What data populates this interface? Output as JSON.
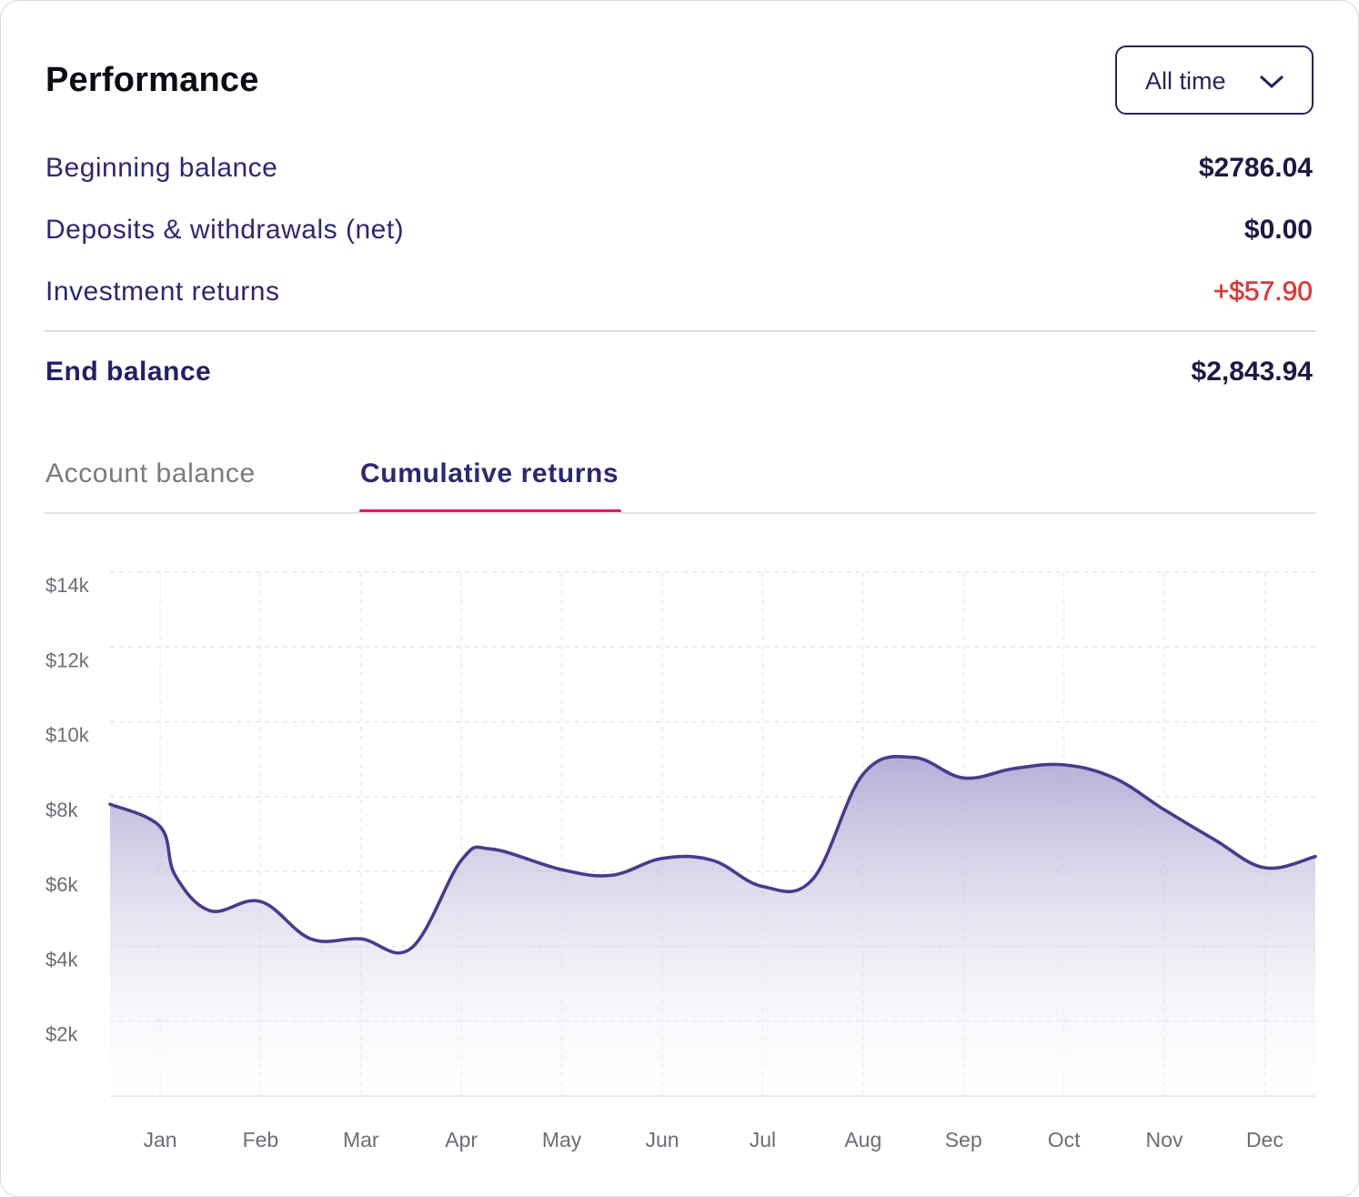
{
  "header": {
    "title": "Performance",
    "period_dropdown": {
      "selected": "All time"
    }
  },
  "summary": {
    "beginning_balance": {
      "label": "Beginning balance",
      "value": "$2786.04"
    },
    "deposits_withdrawals": {
      "label": "Deposits & withdrawals (net)",
      "value": "$0.00"
    },
    "investment_returns": {
      "label": "Investment returns",
      "value": "+$57.90"
    },
    "end_balance": {
      "label": "End balance",
      "value": "$2,843.94"
    }
  },
  "tabs": [
    {
      "label": "Account balance",
      "active": false
    },
    {
      "label": "Cumulative returns",
      "active": true
    }
  ],
  "colors": {
    "line": "#463c8c",
    "accent_underline": "#e01a6d",
    "positive_value": "#d93b3b",
    "text_primary": "#2d2870"
  },
  "chart_data": {
    "type": "area",
    "title": "",
    "xlabel": "",
    "ylabel": "",
    "ylim": [
      0,
      14000
    ],
    "yticks": [
      2000,
      4000,
      6000,
      8000,
      10000,
      12000,
      14000
    ],
    "ytick_labels": [
      "$2k",
      "$4k",
      "$6k",
      "$8k",
      "$10k",
      "$12k",
      "$14k"
    ],
    "categories": [
      "Jan",
      "Feb",
      "Mar",
      "Apr",
      "May",
      "Jun",
      "Jul",
      "Aug",
      "Sep",
      "Oct",
      "Nov",
      "Dec"
    ],
    "x": [
      -0.5,
      0,
      0.15,
      0.5,
      1,
      1.5,
      2,
      2.5,
      3,
      3.3,
      4,
      4.5,
      5,
      5.5,
      6,
      6.5,
      7,
      7.5,
      8,
      8.5,
      9,
      9.5,
      10,
      10.5,
      11,
      11.6
    ],
    "values": [
      7800,
      7200,
      5900,
      4950,
      5200,
      4200,
      4200,
      3950,
      6300,
      6600,
      6050,
      5900,
      6350,
      6300,
      5600,
      5800,
      8600,
      9050,
      8500,
      8750,
      8850,
      8500,
      7650,
      6850,
      6100,
      6400
    ],
    "grid": true,
    "legend": "none"
  }
}
